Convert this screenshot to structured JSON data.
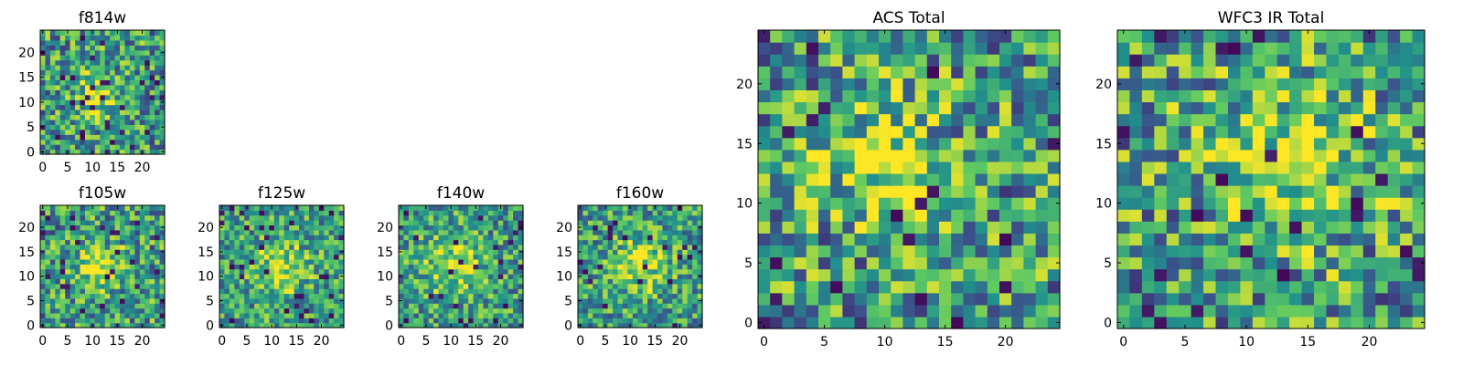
{
  "figure": {
    "colormap": [
      "#440154",
      "#3b528b",
      "#21918c",
      "#5ec962",
      "#fde725"
    ],
    "background": "#ffffff"
  },
  "chart_data": [
    {
      "type": "heatmap",
      "title": "f814w",
      "grid_size": 25,
      "xticks": [
        "0",
        "5",
        "10",
        "15",
        "20"
      ],
      "yticks": [
        "0",
        "5",
        "10",
        "15",
        "20"
      ],
      "xlim": [
        -0.5,
        24.5
      ],
      "ylim": [
        -0.5,
        24.5
      ],
      "peak_center": [
        11,
        12
      ],
      "peak_width": 3.0,
      "noise_amplitude": 0.45,
      "seed": 814
    },
    {
      "type": "heatmap",
      "title": "f105w",
      "grid_size": 25,
      "xticks": [
        "0",
        "5",
        "10",
        "15",
        "20"
      ],
      "yticks": [
        "0",
        "5",
        "10",
        "15",
        "20"
      ],
      "xlim": [
        -0.5,
        24.5
      ],
      "ylim": [
        -0.5,
        24.5
      ],
      "peak_center": [
        12,
        12
      ],
      "peak_width": 3.2,
      "noise_amplitude": 0.45,
      "seed": 105
    },
    {
      "type": "heatmap",
      "title": "f125w",
      "grid_size": 25,
      "xticks": [
        "0",
        "5",
        "10",
        "15",
        "20"
      ],
      "yticks": [
        "0",
        "5",
        "10",
        "15",
        "20"
      ],
      "xlim": [
        -0.5,
        24.5
      ],
      "ylim": [
        -0.5,
        24.5
      ],
      "peak_center": [
        12,
        12
      ],
      "peak_width": 3.8,
      "noise_amplitude": 0.4,
      "seed": 125
    },
    {
      "type": "heatmap",
      "title": "f140w",
      "grid_size": 25,
      "xticks": [
        "0",
        "5",
        "10",
        "15",
        "20"
      ],
      "yticks": [
        "0",
        "5",
        "10",
        "15",
        "20"
      ],
      "xlim": [
        -0.5,
        24.5
      ],
      "ylim": [
        -0.5,
        24.5
      ],
      "peak_center": [
        11,
        12
      ],
      "peak_width": 4.2,
      "noise_amplitude": 0.4,
      "seed": 140
    },
    {
      "type": "heatmap",
      "title": "f160w",
      "grid_size": 25,
      "xticks": [
        "0",
        "5",
        "10",
        "15",
        "20"
      ],
      "yticks": [
        "0",
        "5",
        "10",
        "15",
        "20"
      ],
      "xlim": [
        -0.5,
        24.5
      ],
      "ylim": [
        -0.5,
        24.5
      ],
      "peak_center": [
        12,
        12
      ],
      "peak_width": 4.2,
      "noise_amplitude": 0.4,
      "seed": 160
    },
    {
      "type": "heatmap",
      "title": "ACS Total",
      "grid_size": 25,
      "xticks": [
        "0",
        "5",
        "10",
        "15",
        "20"
      ],
      "yticks": [
        "0",
        "5",
        "10",
        "15",
        "20"
      ],
      "xlim": [
        -0.5,
        24.5
      ],
      "ylim": [
        -0.5,
        24.5
      ],
      "peak_center": [
        10,
        13
      ],
      "peak_width": 3.4,
      "noise_amplitude": 0.5,
      "seed": 901
    },
    {
      "type": "heatmap",
      "title": "WFC3 IR Total",
      "grid_size": 25,
      "xticks": [
        "0",
        "5",
        "10",
        "15",
        "20"
      ],
      "yticks": [
        "0",
        "5",
        "10",
        "15",
        "20"
      ],
      "xlim": [
        -0.5,
        24.5
      ],
      "ylim": [
        -0.5,
        24.5
      ],
      "peak_center": [
        13,
        13
      ],
      "peak_width": 4.5,
      "noise_amplitude": 0.5,
      "seed": 902
    }
  ]
}
